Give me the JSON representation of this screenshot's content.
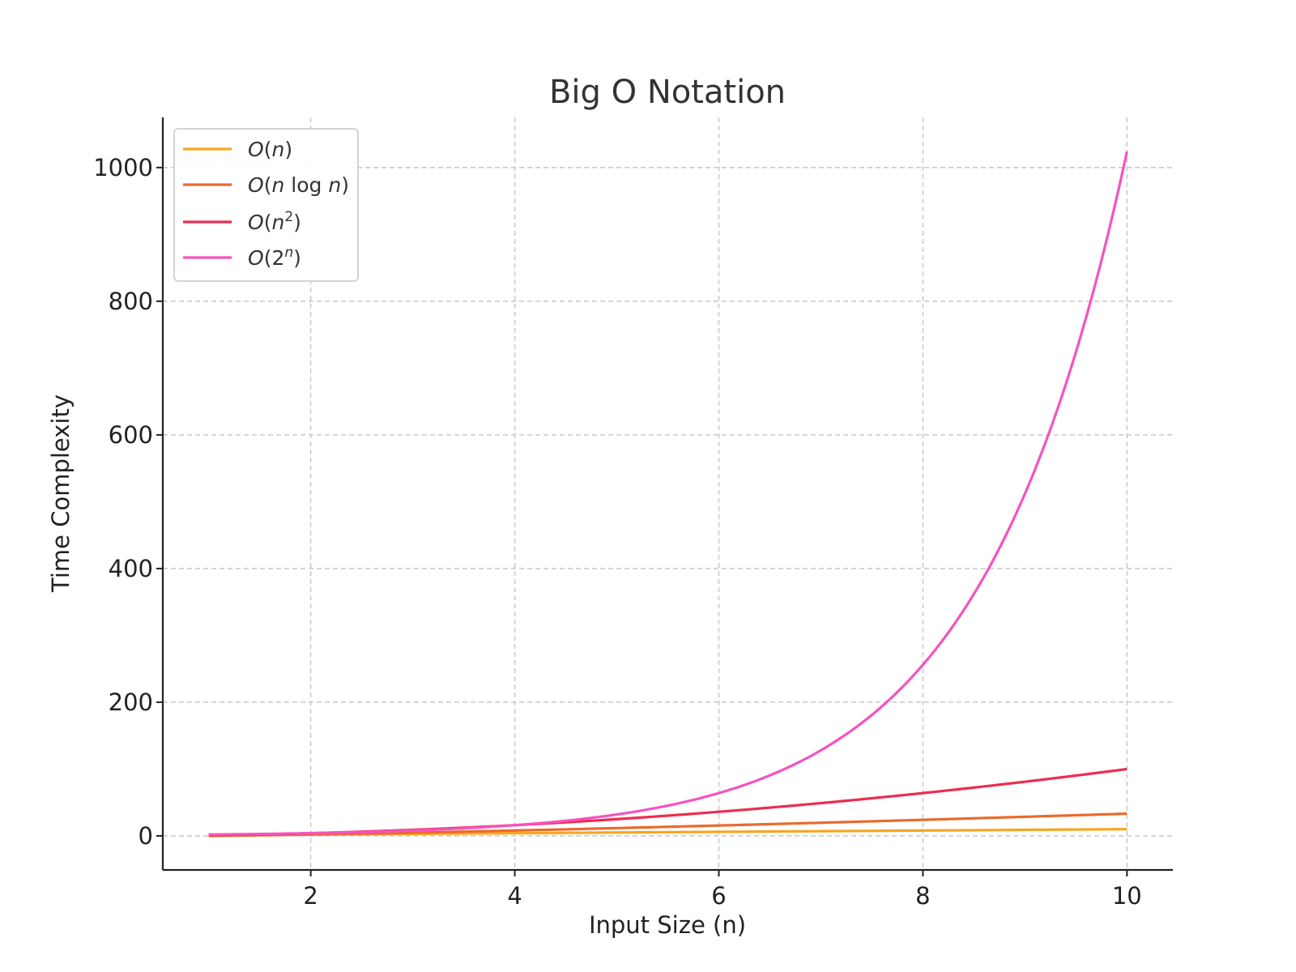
{
  "chart_data": {
    "type": "line",
    "title": "Big O Notation",
    "xlabel": "Input Size (n)",
    "ylabel": "Time Complexity",
    "xlim": [
      0.55,
      10.45
    ],
    "ylim": [
      -51,
      1075
    ],
    "x_ticks": [
      2,
      4,
      6,
      8,
      10
    ],
    "y_ticks": [
      0,
      200,
      400,
      600,
      800,
      1000
    ],
    "x_tick_labels": [
      "2",
      "4",
      "6",
      "8",
      "10"
    ],
    "y_tick_labels": [
      "0",
      "200",
      "400",
      "600",
      "800",
      "1000"
    ],
    "grid": true,
    "legend_position": "top-left",
    "x_range": [
      1,
      10
    ],
    "series": [
      {
        "name": "O(n)",
        "legend": {
          "base": "O(",
          "italic": "n",
          "sup": "",
          "tail": ")"
        },
        "color": "#f5a623",
        "function": "n",
        "x": [
          1,
          2,
          4,
          6,
          8,
          10
        ],
        "y": [
          1,
          2,
          4,
          6,
          8,
          10
        ]
      },
      {
        "name": "O(n log n)",
        "legend": {
          "base": "O(",
          "italic": "n",
          "mid": "log ",
          "italic2": "n",
          "sup": "",
          "tail": ")"
        },
        "color": "#eb6a2c",
        "function": "nlog2n",
        "x": [
          1,
          2,
          4,
          6,
          8,
          10
        ],
        "y": [
          0,
          2,
          8,
          15.5,
          24,
          33.2
        ]
      },
      {
        "name": "O(n^2)",
        "legend": {
          "base": "O(",
          "italic": "n",
          "sup": "2",
          "tail": ")"
        },
        "color": "#ee2c4f",
        "function": "n2",
        "x": [
          1,
          2,
          4,
          6,
          8,
          10
        ],
        "y": [
          1,
          4,
          16,
          36,
          64,
          100
        ]
      },
      {
        "name": "O(2^n)",
        "legend": {
          "base": "O(2",
          "italic": "",
          "sup": "n",
          "tail": ")"
        },
        "color": "#f553c0",
        "function": "2n",
        "x": [
          1,
          2,
          4,
          6,
          8,
          10
        ],
        "y": [
          2,
          4,
          16,
          64,
          256,
          1024
        ]
      }
    ]
  }
}
